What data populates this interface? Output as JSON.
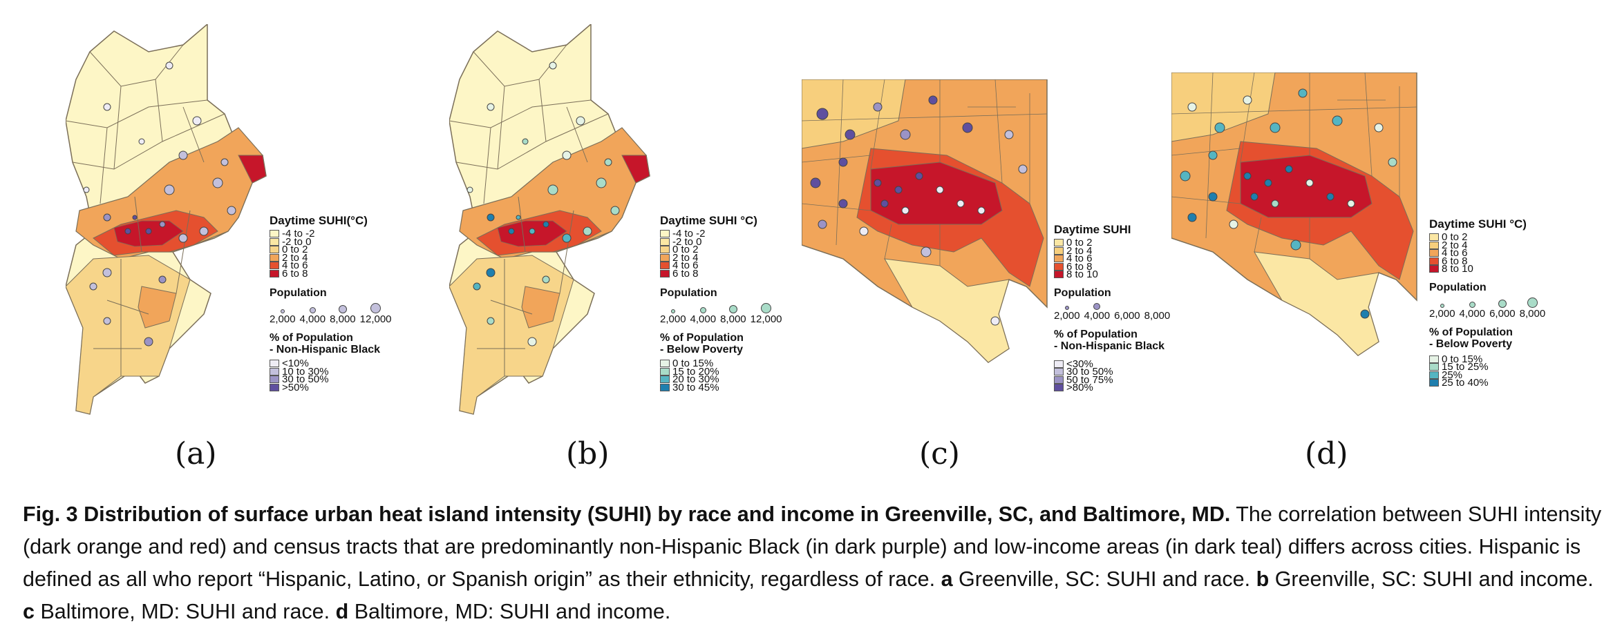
{
  "panels": [
    {
      "label": "(a)",
      "suhi_title": "Daytime SUHI(°C)",
      "suhi_classes": [
        "-4 to -2",
        "-2 to 0",
        "0 to 2",
        "2 to 4",
        "4 to 6",
        "6 to 8"
      ],
      "population_title": "Population",
      "population_values": [
        "2,000",
        "4,000",
        "8,000",
        "12,000"
      ],
      "pct_title_line1": "% of Population",
      "pct_title_line2": "- Non-Hispanic Black",
      "pct_classes": [
        "<10%",
        "10 to 30%",
        "30 to 50%",
        ">50%"
      ]
    },
    {
      "label": "(b)",
      "suhi_title": "Daytime SUHI °C)",
      "suhi_classes": [
        "-4 to -2",
        "-2 to 0",
        "0 to 2",
        "2 to 4",
        "4 to 6",
        "6 to 8"
      ],
      "population_title": "Population",
      "population_values": [
        "2,000",
        "4,000",
        "8,000",
        "12,000"
      ],
      "pct_title_line1": "% of Population",
      "pct_title_line2": "- Below Poverty",
      "pct_classes": [
        "0 to 15%",
        "15 to 20%",
        "20 to 30%",
        "30 to 45%"
      ]
    },
    {
      "label": "(c)",
      "suhi_title": "Daytime SUHI",
      "suhi_classes": [
        "0 to 2",
        "2 to 4",
        "4 to 6",
        "6 to 8",
        "8 to 10"
      ],
      "population_title": "Population",
      "population_values": [
        "2,000",
        "4,000",
        "6,000",
        "8,000"
      ],
      "pct_title_line1": "% of Population",
      "pct_title_line2": "- Non-Hispanic Black",
      "pct_classes": [
        "<30%",
        "30 to 50%",
        "50 to 75%",
        ">80%"
      ]
    },
    {
      "label": "(d)",
      "suhi_title": "Daytime SUHI °C)",
      "suhi_classes": [
        "0 to 2",
        "2 to 4",
        "4 to 6",
        "6 to 8",
        "8 to 10"
      ],
      "population_title": "Population",
      "population_values": [
        "2,000",
        "4,000",
        "6,000",
        "8,000"
      ],
      "pct_title_line1": "% of Population",
      "pct_title_line2": "- Below Poverty",
      "pct_classes": [
        "0 to 15%",
        "15 to 25%",
        "25%",
        "25 to 40%"
      ]
    }
  ],
  "colors": {
    "suhi_6": [
      "#fdf6c6",
      "#fbe7a4",
      "#f7d58a",
      "#f1a55a",
      "#e5502f",
      "#c6162a"
    ],
    "suhi_5": [
      "#fbe7a4",
      "#f7cf7d",
      "#f1a55a",
      "#e5502f",
      "#c6162a"
    ],
    "purple": [
      "#eeecf5",
      "#c3c0dc",
      "#9b93c5",
      "#5f4f9f"
    ],
    "teal": [
      "#e6f3e6",
      "#a9dcc8",
      "#55b5c2",
      "#1f7fae"
    ],
    "boundary": "#7a6e58"
  },
  "caption": {
    "fig_label": "Fig. 3",
    "bold_title": "Distribution of surface urban heat island intensity (SUHI) by race and income in Greenville, SC, and Baltimore, MD.",
    "text1": " The correlation between SUHI intensity (dark orange and red) and census tracts that are predominantly non-Hispanic Black (in dark purple) and low-income areas (in dark teal) differs across cities. Hispanic is defined as all who report “Hispanic, Latino, or Spanish origin” as their ethnicity, regardless of race. ",
    "a": "a",
    "a_text": " Greenville, SC: SUHI and race. ",
    "b": "b",
    "b_text": " Greenville, SC: SUHI and income. ",
    "c": "c",
    "c_text": " Baltimore, MD: SUHI and race. ",
    "d": "d",
    "d_text": " Baltimore, MD: SUHI and income."
  }
}
